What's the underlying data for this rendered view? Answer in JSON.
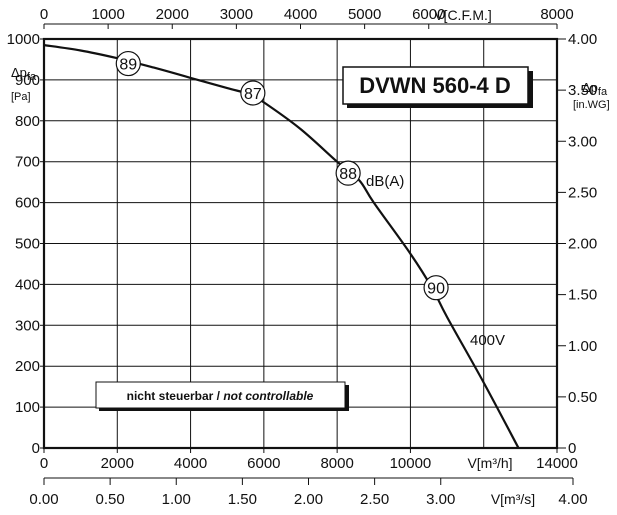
{
  "chart_data": {
    "type": "line",
    "title": "DVWN 560-4 D",
    "x_bottom": {
      "unit": "V[m³/h]",
      "range": [
        0,
        14000
      ],
      "ticks": [
        "0",
        "2000",
        "4000",
        "6000",
        "8000",
        "10000",
        "14000"
      ]
    },
    "x_bottom2": {
      "unit": "V[m³/s]",
      "range": [
        0,
        4
      ],
      "ticks": [
        "0.00",
        "0.50",
        "1.00",
        "1.50",
        "2.00",
        "2.50",
        "3.00",
        "4.00"
      ]
    },
    "x_top": {
      "unit": "V[C.F.M.]",
      "range": [
        0,
        8000
      ],
      "ticks": [
        "0",
        "1000",
        "2000",
        "3000",
        "4000",
        "5000",
        "6000",
        "8000"
      ]
    },
    "y_left": {
      "label": "Δp",
      "sub": "fa",
      "unit": "[Pa]",
      "range": [
        0,
        1000
      ],
      "ticks": [
        "0",
        "100",
        "200",
        "300",
        "400",
        "500",
        "600",
        "700",
        "800",
        "900",
        "1000"
      ]
    },
    "y_right": {
      "label": "Δp",
      "sub": "fa",
      "unit": "[in.WG]",
      "range": [
        0,
        4
      ],
      "ticks": [
        "0",
        "0.50",
        "1.00",
        "1.50",
        "2.00",
        "2.50",
        "3.00",
        "3.50",
        "4.00"
      ]
    },
    "series": [
      {
        "name": "400V",
        "x": [
          0,
          1000,
          2000,
          3000,
          4000,
          5000,
          5600,
          6000,
          7000,
          8000,
          8600,
          9000,
          10000,
          10600,
          11000,
          12000,
          12950
        ],
        "y": [
          985,
          972,
          953,
          930,
          905,
          880,
          865,
          845,
          780,
          700,
          655,
          600,
          475,
          390,
          320,
          160,
          0
        ],
        "color": "#111111"
      }
    ],
    "markers": [
      {
        "label": "89",
        "x": 2300,
        "y": 940
      },
      {
        "label": "87",
        "x": 5700,
        "y": 868
      },
      {
        "label": "88",
        "x": 8300,
        "y": 672
      },
      {
        "label": "90",
        "x": 10700,
        "y": 392
      }
    ],
    "marker_unit": "dB(A)",
    "note": {
      "bold": "nicht steuerbar / ",
      "italic": "not controllable"
    },
    "grid": true
  }
}
